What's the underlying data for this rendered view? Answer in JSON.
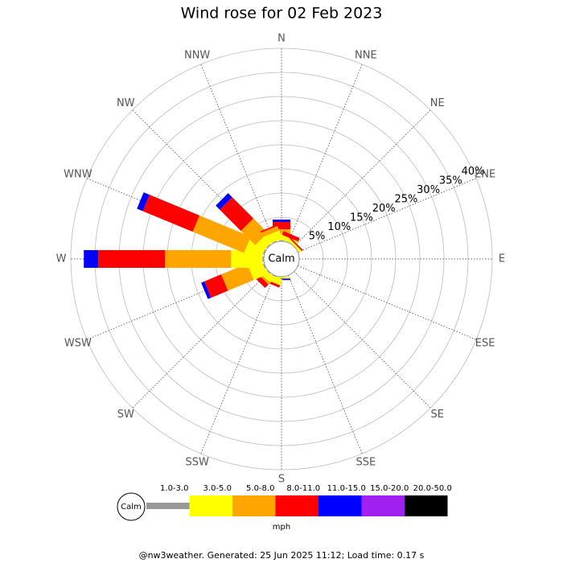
{
  "chart_data": {
    "type": "windrose",
    "title": "Wind rose for 02 Feb 2023",
    "categories": [
      "N",
      "NNE",
      "NE",
      "ENE",
      "E",
      "ESE",
      "SE",
      "SSE",
      "S",
      "SSW",
      "SW",
      "WSW",
      "W",
      "WNW",
      "NW",
      "NNW"
    ],
    "rlim": [
      0,
      40
    ],
    "rticks": [
      {
        "value": 5,
        "label": "5%"
      },
      {
        "value": 10,
        "label": "10%"
      },
      {
        "value": 15,
        "label": "15%"
      },
      {
        "value": 20,
        "label": "20%"
      },
      {
        "value": 25,
        "label": "25%"
      },
      {
        "value": 30,
        "label": "30%"
      },
      {
        "value": 35,
        "label": "35%"
      },
      {
        "value": 40,
        "label": "40%"
      }
    ],
    "calm_label": "Calm",
    "unit": "mph",
    "series": [
      {
        "name": "1.0-3.0",
        "color": "#999999",
        "values": [
          0.2,
          0.1,
          0,
          0,
          0,
          0,
          0,
          0,
          0.1,
          0.2,
          0.2,
          0.3,
          0.3,
          0.3,
          0.2,
          0.2
        ]
      },
      {
        "name": "3.0-5.0",
        "color": "#ffff00",
        "values": [
          1.3,
          0.9,
          0.5,
          0,
          0,
          0,
          0,
          0,
          0.3,
          1.3,
          1.3,
          3.0,
          6.5,
          3.7,
          2.0,
          1.8
        ]
      },
      {
        "name": "5.0-8.0",
        "color": "#ffa500",
        "values": [
          1.0,
          0,
          0,
          0,
          0,
          0,
          0,
          0,
          0,
          0,
          0.5,
          5.8,
          13.7,
          11.5,
          4.2,
          1.0
        ]
      },
      {
        "name": "8.0-11.0",
        "color": "#ff0000",
        "values": [
          1.5,
          0.8,
          0.3,
          0,
          0,
          0,
          0,
          0,
          0,
          0.5,
          1.0,
          3.8,
          13.8,
          11.2,
          6.2,
          0.3
        ]
      },
      {
        "name": "11.0-15.0",
        "color": "#0000ff",
        "values": [
          0.5,
          0,
          0,
          0,
          0,
          0,
          0,
          0,
          0.3,
          0,
          0,
          0.7,
          3.0,
          1.3,
          1.2,
          0
        ]
      },
      {
        "name": "15.0-20.0",
        "color": "#a020f0",
        "values": [
          0,
          0,
          0,
          0,
          0,
          0,
          0,
          0,
          0,
          0,
          0,
          0,
          0,
          0,
          0,
          0
        ]
      },
      {
        "name": "20.0-50.0",
        "color": "#000000",
        "values": [
          0,
          0,
          0,
          0,
          0,
          0,
          0,
          0,
          0,
          0,
          0,
          0,
          0,
          0,
          0,
          0
        ]
      }
    ],
    "footer": "@nw3weather. Generated: 25 Jun 2025 11:12; Load time: 0.17 s"
  }
}
